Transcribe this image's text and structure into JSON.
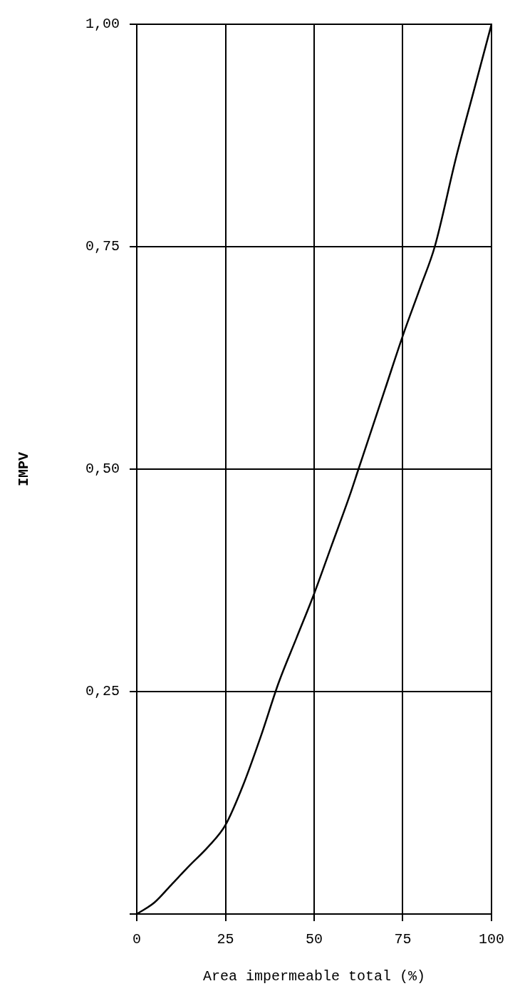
{
  "chart_data": {
    "type": "line",
    "xlabel": "Area impermeable total (%)",
    "ylabel": "IMPV",
    "x": [
      0,
      5,
      10,
      15,
      20,
      25,
      30,
      35,
      40,
      45,
      50,
      55,
      60,
      62.5,
      65,
      70,
      75,
      80,
      84,
      90,
      95,
      100
    ],
    "series": [
      {
        "color": "#000000",
        "values": [
          0,
          0.013,
          0.034,
          0.055,
          0.075,
          0.1,
          0.145,
          0.2,
          0.26,
          0.31,
          0.36,
          0.415,
          0.47,
          0.5,
          0.53,
          0.59,
          0.65,
          0.705,
          0.75,
          0.85,
          0.925,
          1.0
        ]
      }
    ],
    "xlim": [
      0,
      100
    ],
    "xticks": [
      0,
      25,
      50,
      75,
      100
    ],
    "ylim": [
      0,
      1
    ],
    "yticks": [
      {
        "value": 0,
        "label": null
      },
      {
        "value": 0.25,
        "label": "0,25"
      },
      {
        "value": 0.5,
        "label": "0,50"
      },
      {
        "value": 0.75,
        "label": "0,75"
      },
      {
        "value": 1,
        "label": "1,00"
      }
    ],
    "grid": true,
    "legend": false,
    "marker": "none",
    "line_style": "solid"
  }
}
